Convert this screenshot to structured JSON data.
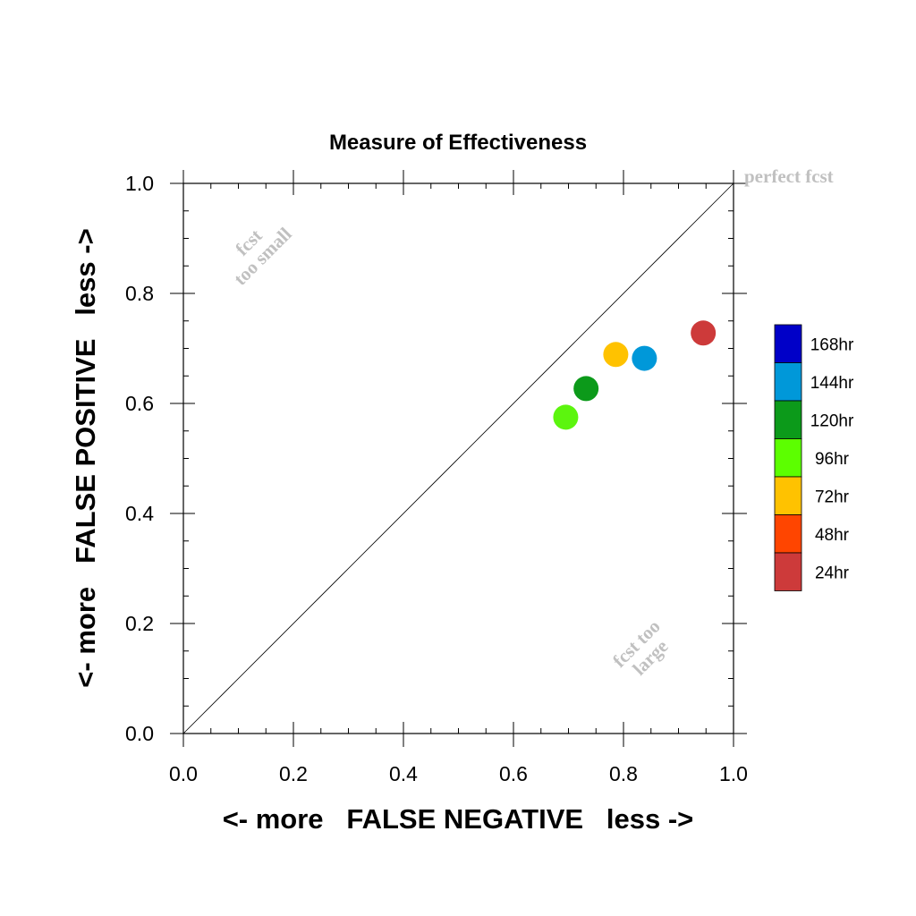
{
  "chart_data": {
    "type": "scatter",
    "title": "Measure of Effectiveness",
    "xlabel": "<- more   FALSE NEGATIVE   less ->",
    "ylabel": "<- more   FALSE POSITIVE   less ->",
    "xlim": [
      0.0,
      1.0
    ],
    "ylim": [
      0.0,
      1.0
    ],
    "xticks": [
      "0.0",
      "0.2",
      "0.4",
      "0.6",
      "0.8",
      "1.0"
    ],
    "yticks": [
      "0.0",
      "0.2",
      "0.4",
      "0.6",
      "0.8",
      "1.0"
    ],
    "grid": false,
    "diagonal": true,
    "annotations": {
      "perfect": "perfect fcst",
      "too_small_1": "fcst",
      "too_small_2": "too small",
      "too_large_1": "fcst too",
      "too_large_2": "large"
    },
    "points": [
      {
        "label": "96hr",
        "x": 0.695,
        "y": 0.575,
        "color": "#5cf50e"
      },
      {
        "label": "120hr",
        "x": 0.732,
        "y": 0.627,
        "color": "#0c9a1a"
      },
      {
        "label": "72hr",
        "x": 0.786,
        "y": 0.689,
        "color": "#ffc200"
      },
      {
        "label": "144hr",
        "x": 0.838,
        "y": 0.682,
        "color": "#0098d9"
      },
      {
        "label": "24hr",
        "x": 0.945,
        "y": 0.728,
        "color": "#cd3a3a"
      }
    ],
    "legend": [
      {
        "label": "168hr",
        "color": "#0000c8"
      },
      {
        "label": "144hr",
        "color": "#0098d9"
      },
      {
        "label": "120hr",
        "color": "#0c9a1a"
      },
      {
        "label": "96hr",
        "color": "#5cff00"
      },
      {
        "label": "72hr",
        "color": "#ffc200"
      },
      {
        "label": "48hr",
        "color": "#ff4500"
      },
      {
        "label": "24hr",
        "color": "#cd3a3a"
      }
    ],
    "legend_position": "right"
  }
}
